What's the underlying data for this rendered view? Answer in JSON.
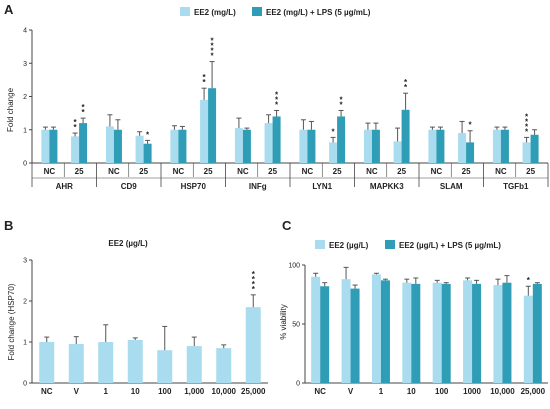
{
  "colors": {
    "light": "#a8dcee",
    "dark": "#2f9db5",
    "axis": "#444444",
    "error": "#555555"
  },
  "panels": {
    "A": {
      "label": "A",
      "legend": [
        "EE2 (mg/L)",
        "EE2 (mg/L) + LPS (5 µg/mL)"
      ],
      "ylabel": "Fold change",
      "ylim": [
        0,
        4
      ],
      "yticks": [
        "0",
        "1",
        "2",
        "3",
        "4"
      ],
      "sub_labels": [
        "NC",
        "25"
      ],
      "genes": [
        {
          "name": "AHR",
          "groups": [
            {
              "light": 1.0,
              "light_err": 0.08,
              "dark": 1.0,
              "dark_err": 0.08,
              "stars": ""
            },
            {
              "light": 0.8,
              "light_err": 0.1,
              "dark": 1.2,
              "dark_err": 0.15,
              "stars_light": "**",
              "stars_dark": "**"
            }
          ]
        },
        {
          "name": "CD9",
          "groups": [
            {
              "light": 1.1,
              "light_err": 0.35,
              "dark": 1.0,
              "dark_err": 0.3
            },
            {
              "light": 0.82,
              "light_err": 0.12,
              "dark": 0.58,
              "dark_err": 0.1,
              "stars_light": "",
              "stars_dark": "*"
            }
          ]
        },
        {
          "name": "HSP70",
          "groups": [
            {
              "light": 1.0,
              "light_err": 0.12,
              "dark": 1.0,
              "dark_err": 0.1
            },
            {
              "light": 1.9,
              "light_err": 0.35,
              "dark": 2.25,
              "dark_err": 0.8,
              "stars_light": "**",
              "stars_dark": "****"
            }
          ]
        },
        {
          "name": "INFg",
          "groups": [
            {
              "light": 1.05,
              "light_err": 0.3,
              "dark": 1.0,
              "dark_err": 0.05
            },
            {
              "light": 1.2,
              "light_err": 0.25,
              "dark": 1.4,
              "dark_err": 0.18,
              "stars_light": "",
              "stars_dark": "***"
            }
          ]
        },
        {
          "name": "LYN1",
          "groups": [
            {
              "light": 1.0,
              "light_err": 0.3,
              "dark": 1.0,
              "dark_err": 0.25
            },
            {
              "light": 0.62,
              "light_err": 0.15,
              "dark": 1.4,
              "dark_err": 0.18,
              "stars_light": "*",
              "stars_dark": "**"
            }
          ]
        },
        {
          "name": "MAPKK3",
          "groups": [
            {
              "light": 1.0,
              "light_err": 0.2,
              "dark": 1.0,
              "dark_err": 0.2
            },
            {
              "light": 0.65,
              "light_err": 0.4,
              "dark": 1.6,
              "dark_err": 0.5,
              "stars_light": "",
              "stars_dark": "**"
            }
          ]
        },
        {
          "name": "SLAM",
          "groups": [
            {
              "light": 1.0,
              "light_err": 0.08,
              "dark": 1.0,
              "dark_err": 0.08
            },
            {
              "light": 0.9,
              "light_err": 0.35,
              "dark": 0.62,
              "dark_err": 0.35,
              "stars_light": "",
              "stars_dark": "*"
            }
          ]
        },
        {
          "name": "TGFb1",
          "groups": [
            {
              "light": 1.0,
              "light_err": 0.08,
              "dark": 1.0,
              "dark_err": 0.08
            },
            {
              "light": 0.62,
              "light_err": 0.15,
              "dark": 0.85,
              "dark_err": 0.15,
              "stars_light": "****",
              "stars_dark": ""
            }
          ]
        }
      ]
    },
    "B": {
      "label": "B",
      "title": "EE2 (µg/L)",
      "ylabel": "Fold change (HSP70)",
      "ylim": [
        0,
        3
      ],
      "yticks": [
        "0",
        "1",
        "2",
        "3"
      ],
      "categories": [
        "NC",
        "V",
        "1",
        "10",
        "100",
        "1,000",
        "10,000",
        "25,000"
      ],
      "values": [
        1.0,
        0.95,
        1.0,
        1.05,
        0.8,
        0.9,
        0.85,
        1.85
      ],
      "errors": [
        0.12,
        0.18,
        0.42,
        0.05,
        0.58,
        0.22,
        0.08,
        0.3
      ],
      "stars": [
        "",
        "",
        "",
        "",
        "",
        "",
        "",
        "****"
      ]
    },
    "C": {
      "label": "C",
      "legend": [
        "EE2 (µg/L)",
        "EE2 (µg/L) + LPS (5 µg/mL)"
      ],
      "ylabel": "% viability",
      "ylim": [
        0,
        100
      ],
      "yticks": [
        "0",
        "50",
        "100"
      ],
      "categories": [
        "NC",
        "V",
        "1",
        "10",
        "100",
        "1000",
        "10,000",
        "25,000"
      ],
      "light": [
        90,
        88,
        92,
        85,
        85,
        87,
        83,
        74
      ],
      "light_err": [
        3,
        10,
        1,
        3,
        2,
        2,
        5,
        8
      ],
      "dark": [
        82,
        80,
        87,
        84,
        84,
        84,
        85,
        84
      ],
      "dark_err": [
        3,
        3,
        1,
        5,
        1,
        3,
        6,
        1
      ],
      "stars_light": [
        "",
        "",
        "",
        "",
        "",
        "",
        "",
        "*"
      ],
      "stars_dark": [
        "",
        "",
        "",
        "",
        "",
        "",
        "",
        ""
      ]
    }
  },
  "chart_data": [
    {
      "type": "bar",
      "panel": "A",
      "ylabel": "Fold change",
      "ylim": [
        0,
        4
      ],
      "categories": [
        "AHR NC",
        "AHR 25",
        "CD9 NC",
        "CD9 25",
        "HSP70 NC",
        "HSP70 25",
        "INFg NC",
        "INFg 25",
        "LYN1 NC",
        "LYN1 25",
        "MAPKK3 NC",
        "MAPKK3 25",
        "SLAM NC",
        "SLAM 25",
        "TGFb1 NC",
        "TGFb1 25"
      ],
      "series": [
        {
          "name": "EE2 (mg/L)",
          "values": [
            1.0,
            0.8,
            1.1,
            0.82,
            1.0,
            1.9,
            1.05,
            1.2,
            1.0,
            0.62,
            1.0,
            0.65,
            1.0,
            0.9,
            1.0,
            0.62
          ]
        },
        {
          "name": "EE2 (mg/L) + LPS (5 µg/mL)",
          "values": [
            1.0,
            1.2,
            1.0,
            0.58,
            1.0,
            2.25,
            1.0,
            1.4,
            1.0,
            1.4,
            1.0,
            1.6,
            1.0,
            0.62,
            1.0,
            0.85
          ]
        }
      ]
    },
    {
      "type": "bar",
      "panel": "B",
      "ylabel": "Fold change (HSP70)",
      "ylim": [
        0,
        3
      ],
      "categories": [
        "NC",
        "V",
        "1",
        "10",
        "100",
        "1,000",
        "10,000",
        "25,000"
      ],
      "values": [
        1.0,
        0.95,
        1.0,
        1.05,
        0.8,
        0.9,
        0.85,
        1.85
      ]
    },
    {
      "type": "bar",
      "panel": "C",
      "ylabel": "% viability",
      "ylim": [
        0,
        100
      ],
      "categories": [
        "NC",
        "V",
        "1",
        "10",
        "100",
        "1000",
        "10,000",
        "25,000"
      ],
      "series": [
        {
          "name": "EE2 (µg/L)",
          "values": [
            90,
            88,
            92,
            85,
            85,
            87,
            83,
            74
          ]
        },
        {
          "name": "EE2 (µg/L) + LPS (5 µg/mL)",
          "values": [
            82,
            80,
            87,
            84,
            84,
            84,
            85,
            84
          ]
        }
      ]
    }
  ]
}
